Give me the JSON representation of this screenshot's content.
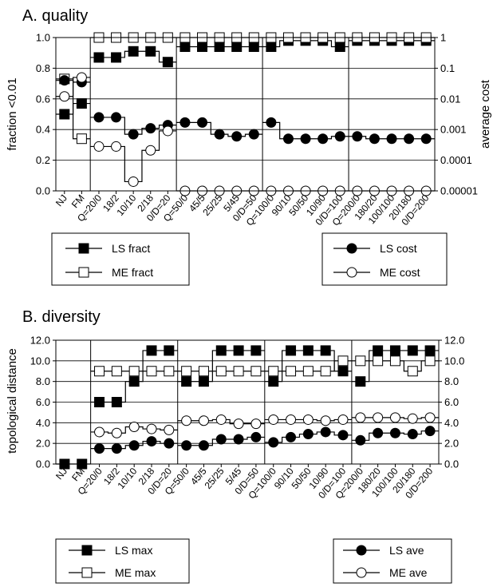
{
  "chart_data": [
    {
      "id": "A",
      "type": "line",
      "title": "A. quality",
      "ylabel": "fraction <0.01",
      "y2label": "average cost",
      "ylim": [
        0,
        1.0
      ],
      "y2scale": "log",
      "y2lim": [
        1e-05,
        1
      ],
      "yticks": [
        "0.0",
        "0.2",
        "0.4",
        "0.6",
        "0.8",
        "1.0"
      ],
      "y2ticks": [
        "0.00001",
        "0.0001",
        "0.001",
        "0.01",
        "0.1",
        "1"
      ],
      "grid": true,
      "categories": [
        "NJ",
        "FM",
        "Q=20/0",
        "18/2",
        "10/10",
        "2/18",
        "0/D=20",
        "Q=50/0",
        "45/5",
        "25/25",
        "5/45",
        "0/D=50",
        "Q=100/0",
        "90/10",
        "50/50",
        "10/90",
        "0/D=100",
        "Q=200/0",
        "180/20",
        "100/100",
        "20/180",
        "0/D=200"
      ],
      "series": [
        {
          "name": "LS fract",
          "axis": "left",
          "marker": "filled-square",
          "values": [
            0.5,
            0.57,
            0.87,
            0.87,
            0.91,
            0.91,
            0.84,
            0.94,
            0.94,
            0.94,
            0.94,
            0.94,
            0.94,
            0.98,
            0.98,
            0.98,
            0.94,
            0.98,
            0.98,
            0.98,
            0.98,
            0.98
          ]
        },
        {
          "name": "ME fract",
          "axis": "left",
          "marker": "open-square",
          "values": [
            0.73,
            0.34,
            1.0,
            1.0,
            1.0,
            1.0,
            1.0,
            1.0,
            1.0,
            1.0,
            1.0,
            1.0,
            1.0,
            1.0,
            1.0,
            1.0,
            1.0,
            1.0,
            1.0,
            1.0,
            1.0,
            1.0
          ]
        },
        {
          "name": "LS cost",
          "axis": "right",
          "marker": "filled-circle",
          "values": [
            0.04,
            0.035,
            0.0025,
            0.0025,
            0.0007,
            0.0011,
            0.0014,
            0.0017,
            0.0017,
            0.0007,
            0.0006,
            0.0007,
            0.0017,
            0.0005,
            0.0005,
            0.0005,
            0.0006,
            0.0006,
            0.0005,
            0.0005,
            0.0005,
            0.0005
          ]
        },
        {
          "name": "ME cost",
          "axis": "right",
          "marker": "open-circle",
          "values": [
            0.012,
            0.05,
            0.00028,
            0.00028,
            2e-05,
            0.00021,
            0.0009,
            1e-05,
            1e-05,
            1e-05,
            1e-05,
            1e-05,
            1e-05,
            1e-05,
            1e-05,
            1e-05,
            1e-05,
            1e-05,
            1e-05,
            1e-05,
            1e-05,
            1e-05
          ]
        }
      ],
      "legend": [
        {
          "name": "LS fract",
          "marker": "filled-square"
        },
        {
          "name": "ME fract",
          "marker": "open-square"
        },
        {
          "name": "LS cost",
          "marker": "filled-circle"
        },
        {
          "name": "ME cost",
          "marker": "open-circle"
        }
      ]
    },
    {
      "id": "B",
      "type": "line",
      "title": "B. diversity",
      "ylabel": "topological distance",
      "ylim": [
        0,
        12.0
      ],
      "yticks": [
        "0.0",
        "2.0",
        "4.0",
        "6.0",
        "8.0",
        "10.0",
        "12.0"
      ],
      "y2ticks": [
        "0.0",
        "2.0",
        "4.0",
        "6.0",
        "8.0",
        "10.0",
        "12.0"
      ],
      "grid": true,
      "categories": [
        "NJ",
        "FM",
        "Q=20/0",
        "18/2",
        "10/10",
        "2/18",
        "0/D=20",
        "Q=50/0",
        "45/5",
        "25/25",
        "5/45",
        "0/D=50",
        "Q=100/0",
        "90/10",
        "50/50",
        "10/90",
        "0/D=100",
        "Q=200/0",
        "180/20",
        "100/100",
        "20/180",
        "0/D=200"
      ],
      "series": [
        {
          "name": "LS max",
          "marker": "filled-square",
          "values": [
            0.0,
            0.0,
            6.0,
            6.0,
            8.0,
            11.0,
            11.0,
            8.0,
            8.0,
            11.0,
            11.0,
            11.0,
            8.0,
            11.0,
            11.0,
            11.0,
            9.0,
            8.0,
            11.0,
            11.0,
            11.0,
            11.0
          ]
        },
        {
          "name": "ME max",
          "marker": "open-square",
          "values": [
            null,
            null,
            9.0,
            9.0,
            9.0,
            9.0,
            9.0,
            9.0,
            9.0,
            9.0,
            9.0,
            9.0,
            9.0,
            9.0,
            9.0,
            9.0,
            10.0,
            10.0,
            10.0,
            10.0,
            9.0,
            10.0
          ]
        },
        {
          "name": "LS ave",
          "marker": "filled-circle",
          "values": [
            null,
            null,
            1.5,
            1.5,
            1.8,
            2.2,
            2.0,
            1.8,
            1.8,
            2.4,
            2.4,
            2.6,
            2.1,
            2.6,
            2.9,
            3.1,
            2.8,
            2.3,
            3.0,
            3.0,
            2.9,
            3.2
          ]
        },
        {
          "name": "ME ave",
          "marker": "open-circle",
          "values": [
            null,
            null,
            3.1,
            3.0,
            3.6,
            3.4,
            3.3,
            4.2,
            4.2,
            4.3,
            3.9,
            3.9,
            4.3,
            4.3,
            4.3,
            4.2,
            4.3,
            4.5,
            4.5,
            4.5,
            4.4,
            4.5
          ]
        }
      ],
      "legend": [
        {
          "name": "LS max",
          "marker": "filled-square"
        },
        {
          "name": "ME max",
          "marker": "open-square"
        },
        {
          "name": "LS ave",
          "marker": "filled-circle"
        },
        {
          "name": "ME ave",
          "marker": "open-circle"
        }
      ]
    }
  ]
}
